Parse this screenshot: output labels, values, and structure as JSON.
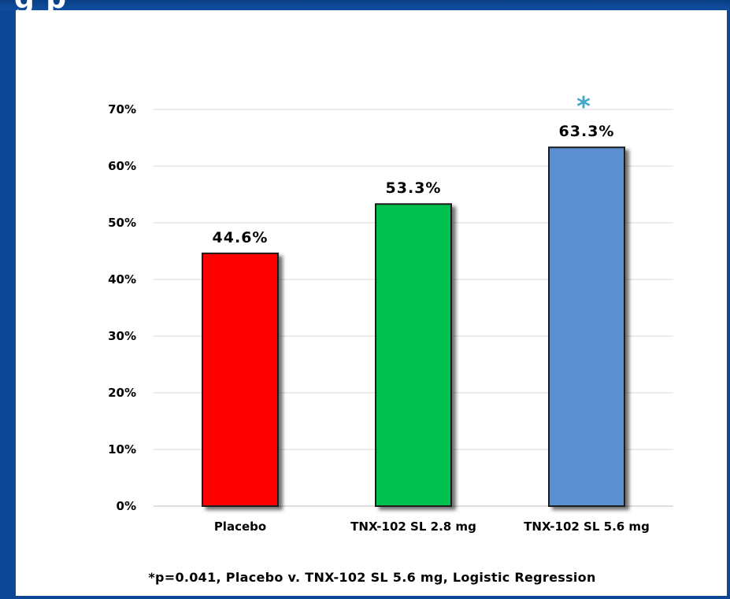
{
  "chart_data": {
    "type": "bar",
    "categories": [
      "Placebo",
      "TNX-102 SL 2.8 mg",
      "TNX-102 SL 5.6 mg"
    ],
    "values": [
      44.6,
      53.3,
      63.3
    ],
    "data_labels": [
      "44.6%",
      "53.3%",
      "63.3%"
    ],
    "colors": [
      "#ff0000",
      "#00c050",
      "#5b8fcf"
    ],
    "yticks": [
      "0%",
      "10%",
      "20%",
      "30%",
      "40%",
      "50%",
      "60%",
      "70%"
    ],
    "ylim": [
      0,
      70
    ],
    "grid": true,
    "significance_marker": "*",
    "significance_category": "TNX-102 SL 5.6 mg",
    "footnote": "*p=0.041, Placebo v. TNX-102 SL 5.6 mg, Logistic Regression"
  },
  "banner": {
    "text": "g p"
  }
}
